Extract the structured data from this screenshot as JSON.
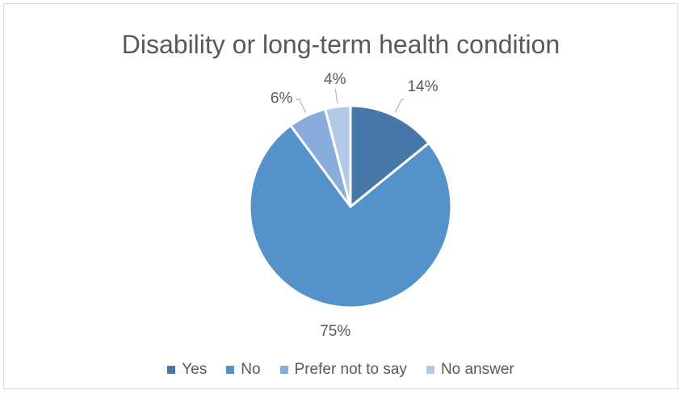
{
  "chart_data": {
    "type": "pie",
    "title": "Disability or long-term health condition",
    "categories": [
      "Yes",
      "No",
      "Prefer not to say",
      "No answer"
    ],
    "values": [
      14,
      75,
      6,
      4
    ],
    "labels": [
      "14%",
      "75%",
      "6%",
      "4%"
    ],
    "colors": [
      "#4677a8",
      "#5592c9",
      "#88addb",
      "#b4c9e6"
    ],
    "legend_position": "bottom"
  }
}
